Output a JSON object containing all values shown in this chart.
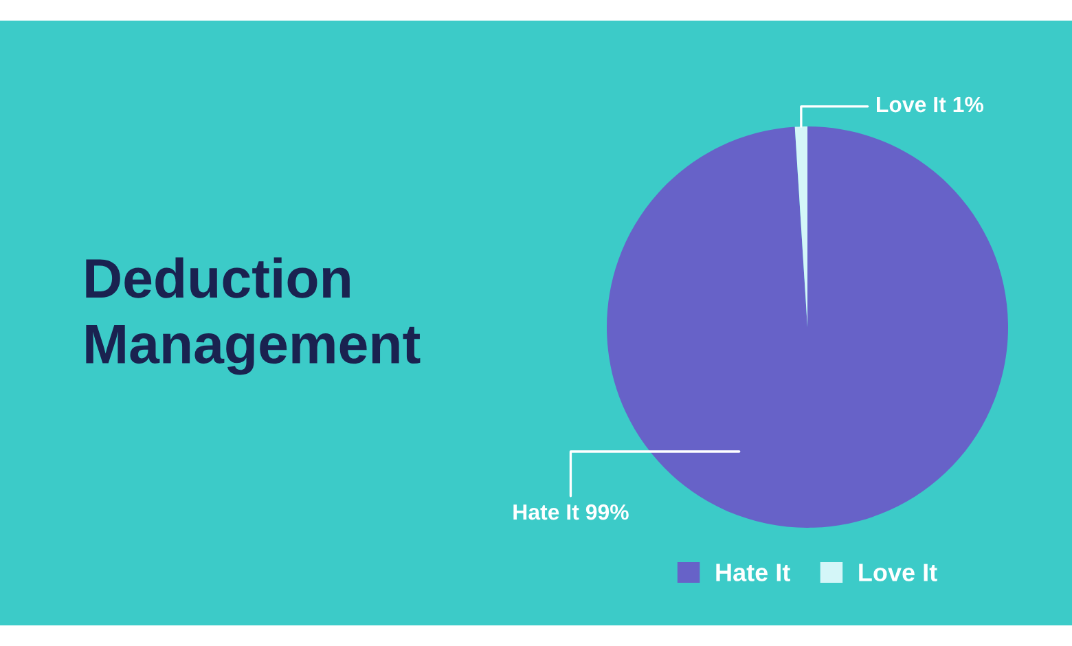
{
  "chart_data": {
    "type": "pie",
    "title": "Deduction Management",
    "categories": [
      "Hate It",
      "Love It"
    ],
    "values": [
      99,
      1
    ],
    "colors": [
      "#6762c8",
      "#d4f6f8"
    ],
    "value_labels": [
      "Hate It 99%",
      "Love It 1%"
    ],
    "legend": "bottom"
  }
}
